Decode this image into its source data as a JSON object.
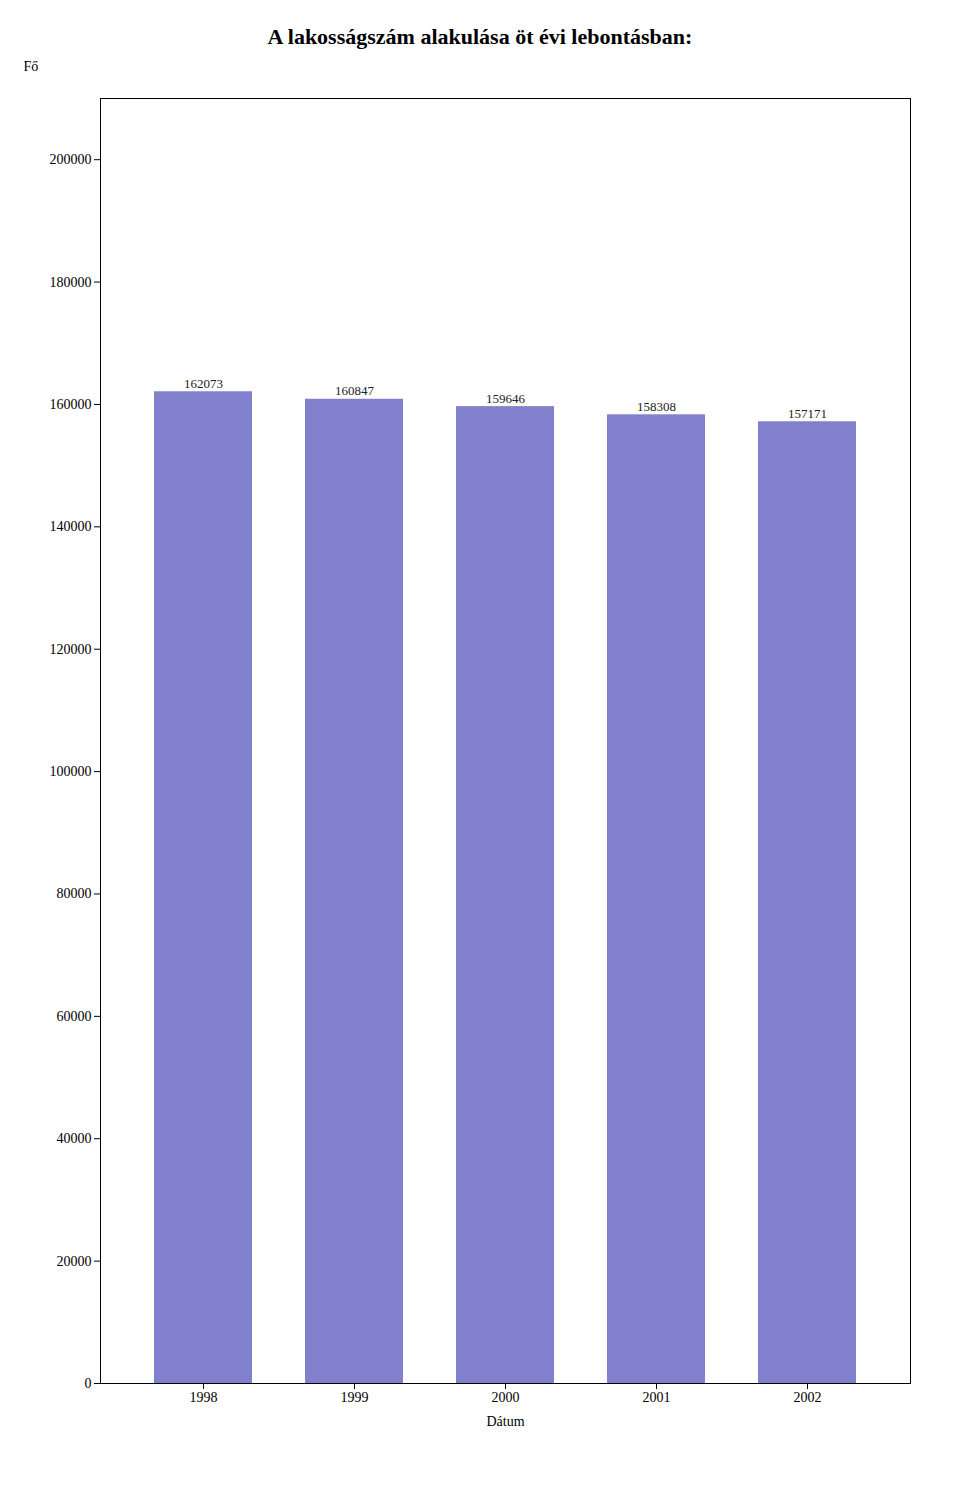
{
  "chart_data": {
    "type": "bar",
    "title": "A lakosságszám alakulása öt évi lebontásban:",
    "x_label": "Dátum",
    "y_label": "Fő",
    "categories": [
      "1998",
      "1999",
      "2000",
      "2001",
      "2002"
    ],
    "values": [
      162073,
      160847,
      159646,
      158308,
      157171
    ],
    "color": "#8080CC",
    "ylim": [
      0,
      210000
    ],
    "yticks": [
      0,
      20000,
      40000,
      60000,
      80000,
      100000,
      120000,
      140000,
      160000,
      180000,
      200000
    ],
    "grid": false,
    "data_labels": true
  }
}
